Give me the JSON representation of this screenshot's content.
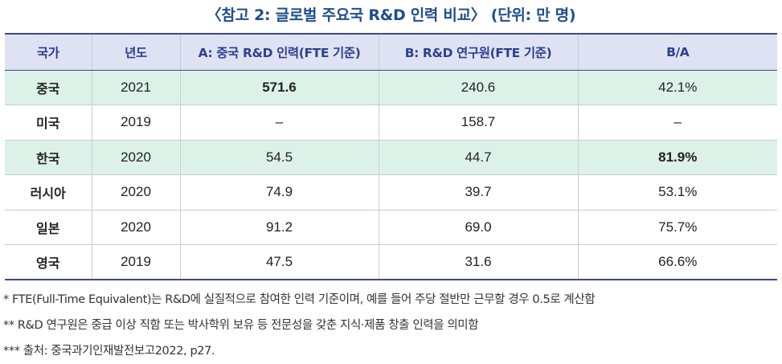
{
  "title": "〈참고 2: 글로벌 주요국 R&D 인력 비교〉 (단위: 만 명)",
  "headers": [
    "국가",
    "년도",
    "A: 중국 R&D 인력(FTE 기준)",
    "B: R&D 연구원(FTE 기준)",
    "B/A"
  ],
  "rows": [
    {
      "country": "중국",
      "year": "2021",
      "a": "571.6",
      "b": "240.6",
      "ratio": "42.1%"
    },
    {
      "country": "미국",
      "year": "2019",
      "a": "–",
      "b": "158.7",
      "ratio": "–"
    },
    {
      "country": "한국",
      "year": "2020",
      "a": "54.5",
      "b": "44.7",
      "ratio": "81.9%"
    },
    {
      "country": "러시아",
      "year": "2020",
      "a": "74.9",
      "b": "39.7",
      "ratio": "53.1%"
    },
    {
      "country": "일본",
      "year": "2020",
      "a": "91.2",
      "b": "69.0",
      "ratio": "75.7%"
    },
    {
      "country": "영국",
      "year": "2019",
      "a": "47.5",
      "b": "31.6",
      "ratio": "66.6%"
    }
  ],
  "notes": [
    "* FTE(Full-Time Equivalent)는 R&D에 실질적으로 참여한 인력 기준이며, 예를 들어 주당 절반만 근무할 경우 0.5로 계산함",
    "** R&D 연구원은 중급 이상 직함 또는 박사학위 보유 등 전문성을 갖춘 지식·제품 창출 인력을 의미함",
    "*** 출처: 중국과기인재발전보고2022, p27."
  ],
  "colors": {
    "title": "#1f4e8c",
    "header_bg": "#dfe2f2",
    "highlight_row_bg": "#dcf2e8",
    "rule": "#3a4a8a"
  }
}
